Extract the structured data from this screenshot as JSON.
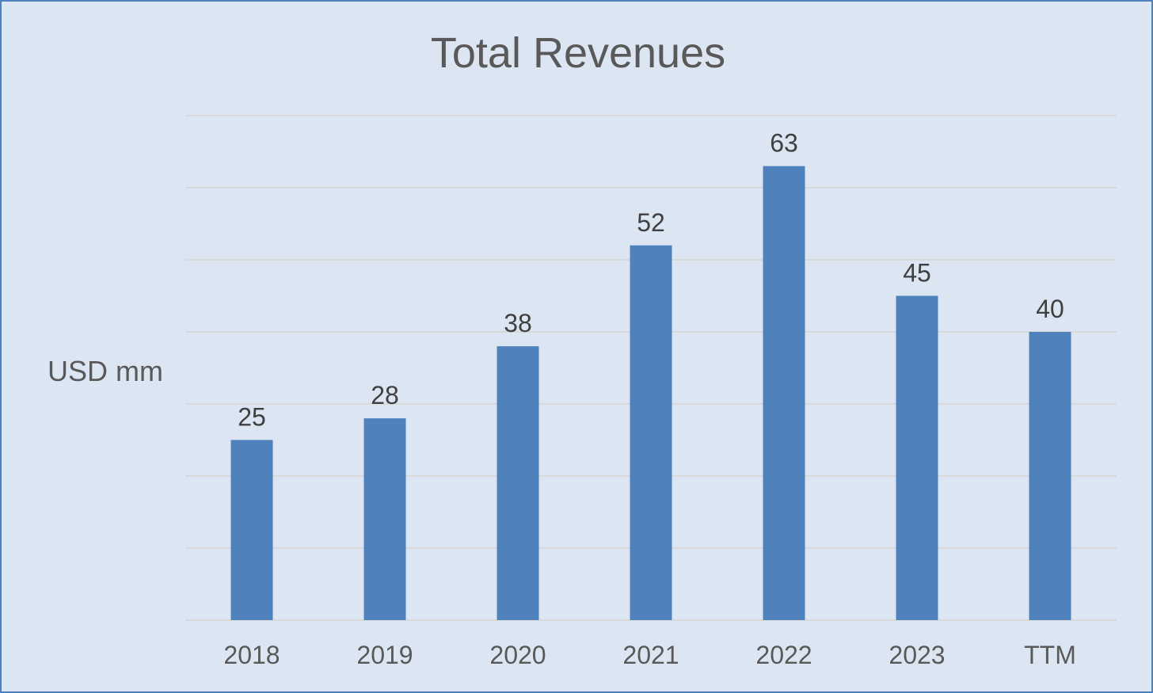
{
  "chart_data": {
    "type": "bar",
    "title": "Total Revenues",
    "xlabel": "",
    "ylabel": "USD mm",
    "categories": [
      "2018",
      "2019",
      "2020",
      "2021",
      "2022",
      "2023",
      "TTM"
    ],
    "values": [
      25,
      28,
      38,
      52,
      63,
      45,
      40
    ],
    "data_labels": [
      "25",
      "28",
      "38",
      "52",
      "63",
      "45",
      "40"
    ],
    "ylim": [
      0,
      70
    ],
    "grid": true,
    "legend": "none",
    "colors": {
      "bar": "#4f81bd",
      "grid": "#d9d9d9",
      "background": "#dce6f2",
      "border": "#4f81bd",
      "text": "#595959"
    }
  }
}
